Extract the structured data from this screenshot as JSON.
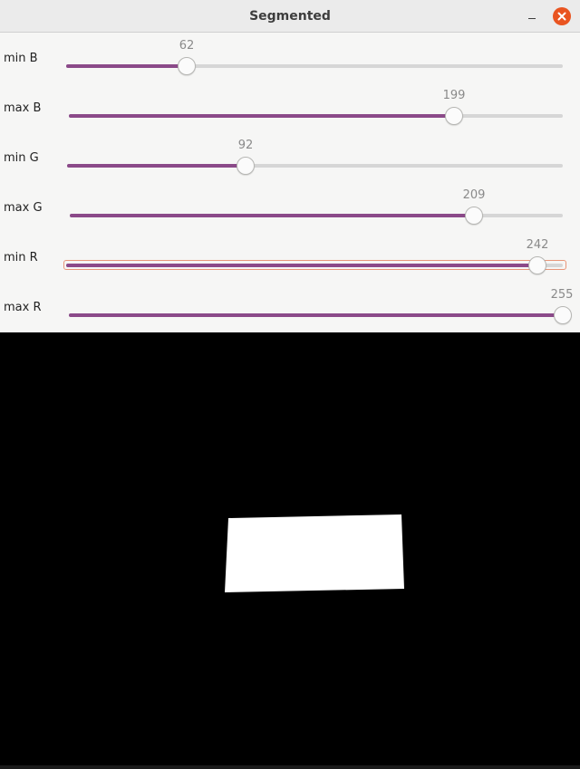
{
  "window": {
    "title": "Segmented",
    "minimize_icon": "minimize-icon",
    "close_icon": "close-icon",
    "close_color": "#e95420"
  },
  "trackbars": [
    {
      "label": "min B",
      "value": "62",
      "level": 62,
      "max": 255,
      "focused": false
    },
    {
      "label": "max B",
      "value": "199",
      "level": 199,
      "max": 255,
      "focused": false
    },
    {
      "label": "min G",
      "value": "92",
      "level": 92,
      "max": 255,
      "focused": false
    },
    {
      "label": "max G",
      "value": "209",
      "level": 209,
      "max": 255,
      "focused": false
    },
    {
      "label": "min R",
      "value": "242",
      "level": 242,
      "max": 255,
      "focused": true
    },
    {
      "label": "max R",
      "value": "255",
      "level": 255,
      "max": 255,
      "focused": false
    }
  ],
  "colors": {
    "fill": "#8b4a89",
    "track": "#d6d6d6",
    "focus_ring": "#e8967a",
    "mask_foreground": "#ffffff",
    "mask_background": "#000000"
  }
}
